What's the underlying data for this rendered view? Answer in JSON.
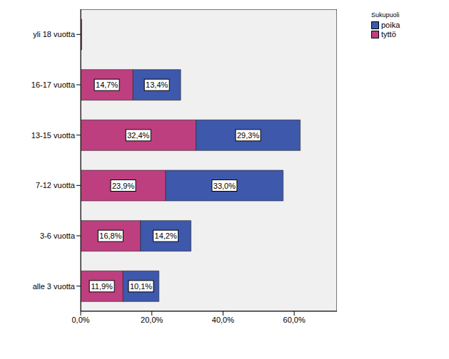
{
  "chart_data": {
    "type": "bar",
    "orientation": "horizontal",
    "stacked": true,
    "data_labels": true,
    "grid": false,
    "legend": "upper right",
    "legend_title": "Sukupuoli",
    "categories": [
      "alle 3 vuotta",
      "3-6 vuotta",
      "7-12 vuotta",
      "13-15 vuotta",
      "16-17 vuotta",
      "yli 18 vuotta"
    ],
    "series": [
      {
        "name": "tyttö",
        "color": "#bd3f7f",
        "values": [
          11.9,
          16.8,
          23.9,
          32.4,
          14.7,
          0.3
        ],
        "value_labels": [
          "11,9%",
          "16,8%",
          "23,9%",
          "32,4%",
          "14,7%",
          null
        ]
      },
      {
        "name": "poika",
        "color": "#3e58ac",
        "values": [
          10.1,
          14.2,
          33.0,
          29.3,
          13.4,
          0
        ],
        "value_labels": [
          "10,1%",
          "14,2%",
          "33,0%",
          "29,3%",
          "13,4%",
          null
        ]
      }
    ],
    "xlim": [
      0,
      72
    ],
    "xticks": [
      {
        "value": 0,
        "label": "0,0%"
      },
      {
        "value": 20,
        "label": "20,0%"
      },
      {
        "value": 40,
        "label": "40,0%"
      },
      {
        "value": 60,
        "label": "60,0%"
      }
    ]
  }
}
